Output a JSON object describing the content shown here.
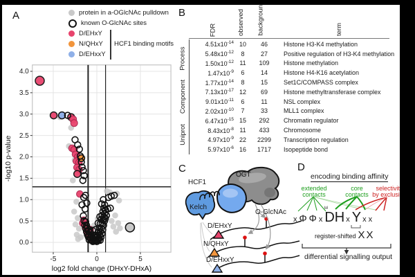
{
  "figure": {
    "panel_a": {
      "label": "A",
      "legend": [
        {
          "swatch": "grey-dot",
          "color_ref": "grey_dot",
          "label": "protein in a-OGlcNAc pulldown"
        },
        {
          "swatch": "open-circle",
          "color_ref": null,
          "label": "known O-GlcNAc sites"
        },
        {
          "swatch": "pink-dot",
          "color_ref": "pink",
          "label": "D/EHxY"
        },
        {
          "swatch": "orange-dot",
          "color_ref": "orange",
          "label": "N/QHxY"
        },
        {
          "swatch": "blue-dot",
          "color_ref": "blue",
          "label": "D/EHxxY"
        }
      ],
      "bracket_label": "HCF1 binding motifs"
    },
    "panel_b": {
      "label": "B",
      "col_headers": [
        "FDR",
        "observed",
        "background",
        "term"
      ],
      "groups": [
        {
          "name": "Process",
          "rows": [
            {
              "fdr_m": "4.51x10",
              "fdr_e": "-14",
              "obs": "10",
              "bg": "46",
              "term": "Histone H3-K4 methylation"
            },
            {
              "fdr_m": "5.48x10",
              "fdr_e": "-12",
              "obs": "8",
              "bg": "27",
              "term": "Positive regulation of H3-K4 methylation"
            },
            {
              "fdr_m": "1.50x10",
              "fdr_e": "-12",
              "obs": "11",
              "bg": "109",
              "term": "Histone methylation"
            },
            {
              "fdr_m": "1.47x10",
              "fdr_e": "-9",
              "obs": "6",
              "bg": "14",
              "term": "Histone H4-K16 acetylation"
            }
          ]
        },
        {
          "name": "Component",
          "rows": [
            {
              "fdr_m": "1.77x10",
              "fdr_e": "-14",
              "obs": "8",
              "bg": "15",
              "term": "Set1C/COMPASS complex"
            },
            {
              "fdr_m": "7.13x10",
              "fdr_e": "-17",
              "obs": "12",
              "bg": "69",
              "term": "Histone methyltransferase complex"
            },
            {
              "fdr_m": "9.01x10",
              "fdr_e": "-11",
              "obs": "6",
              "bg": "11",
              "term": "NSL complex"
            },
            {
              "fdr_m": "2.02x10",
              "fdr_e": "-10",
              "obs": "7",
              "bg": "33",
              "term": "MLL1 complex"
            }
          ]
        },
        {
          "name": "Uniprot",
          "rows": [
            {
              "fdr_m": "6.47x10",
              "fdr_e": "-15",
              "obs": "15",
              "bg": "292",
              "term": "Chromatin regulator"
            },
            {
              "fdr_m": "8.43x10",
              "fdr_e": "-8",
              "obs": "11",
              "bg": "433",
              "term": "Chromosome"
            },
            {
              "fdr_m": "4.97x10",
              "fdr_e": "-9",
              "obs": "22",
              "bg": "2299",
              "term": "Transcription regulation"
            },
            {
              "fdr_m": "5.97x10",
              "fdr_e": "-6",
              "obs": "16",
              "bg": "1717",
              "term": "Isopeptide bond"
            }
          ]
        }
      ]
    },
    "panel_c": {
      "label": "C",
      "hcf1_label": "HCF1",
      "ogt_label": "OGT",
      "kelch_label": "Kelch",
      "oglcnac_label": "O-GlcNAc",
      "motif_rows": [
        {
          "label": "D/EHxY",
          "color_ref": "pink"
        },
        {
          "label": "N/QHxY",
          "color_ref": "orange"
        },
        {
          "label": "D/EHxxY",
          "color_ref": "blue"
        }
      ]
    },
    "panel_d": {
      "label": "D",
      "title": "encoding binding affinity",
      "annotations": {
        "extended": {
          "lines": [
            "extended",
            "contacts"
          ],
          "color_ref": "green"
        },
        "core": {
          "lines": [
            "core",
            "contacts"
          ],
          "color_ref": "green"
        },
        "selectivity": {
          "lines": [
            "selectivity",
            "by exclusion"
          ],
          "color_ref": "red"
        }
      },
      "motif_chars": [
        {
          "t": "x",
          "s": "sm"
        },
        {
          "t": "Φ",
          "s": "md"
        },
        {
          "t": "Φ",
          "s": "md"
        },
        {
          "t": "x",
          "s": "sm"
        },
        {
          "t": "D",
          "s": "lg",
          "sup": "E"
        },
        {
          "t": "H",
          "s": "lg"
        },
        {
          "t": "x",
          "s": "sm"
        },
        {
          "t": "Y",
          "s": "lg"
        },
        {
          "t": "x",
          "s": "sm"
        },
        {
          "t": "x",
          "s": "sm"
        }
      ],
      "register_shifted_label": "register-shifted",
      "register_shifted_chars": "XX",
      "output_label": "differential signalling output"
    }
  },
  "chart_data": {
    "type": "scatter",
    "title": "",
    "xlabel": "log2 fold change (DHxY-DHxA)",
    "ylabel": "-log10 p-value",
    "xlim": [
      -7.4,
      8.5
    ],
    "ylim": [
      -0.23,
      4.15
    ],
    "xticks": [
      -5,
      0,
      5
    ],
    "yticks": [
      0,
      0.5,
      1,
      1.5,
      2,
      2.5,
      3,
      3.5,
      4
    ],
    "threshold_vlines": [
      -1,
      1
    ],
    "threshold_hline": 1.3,
    "grid": true,
    "legend_position": "top-left-outside",
    "series": [
      {
        "name": "protein in a-OGlcNAc pulldown",
        "style": "grey",
        "points": [
          [
            -4.25,
            2.93
          ],
          [
            -2.95,
            2.68
          ],
          [
            -3.2,
            2.25
          ],
          [
            -2.55,
            1.93
          ],
          [
            -2.75,
            1.45
          ],
          [
            -2.35,
            0.95
          ],
          [
            -2.6,
            0.72
          ],
          [
            -2.2,
            0.57
          ],
          [
            -2.45,
            0.42
          ],
          [
            -2.05,
            0.32
          ],
          [
            -2.3,
            0.18
          ],
          [
            -1.85,
            0.12
          ],
          [
            -2.15,
            0.08
          ],
          [
            1.5,
            1.17
          ],
          [
            2.3,
            1.14
          ],
          [
            2.55,
            0.98
          ],
          [
            2.1,
            0.63
          ],
          [
            2.45,
            0.45
          ],
          [
            1.9,
            0.37
          ],
          [
            2.65,
            0.33
          ],
          [
            1.7,
            0.5
          ],
          [
            2.2,
            0.25
          ],
          [
            0.4,
            0.52
          ],
          [
            0.2,
            0.35
          ],
          [
            1.15,
            1.2
          ],
          [
            0.1,
            0.55
          ],
          [
            -0.3,
            0.4
          ]
        ]
      },
      {
        "name": "D/EHxY",
        "style": "pink",
        "points": [
          [
            -6.55,
            3.78,
            6.5,
            1
          ],
          [
            -4.95,
            2.97,
            5,
            1
          ],
          [
            -2.95,
            2.93,
            5,
            1
          ],
          [
            -2.72,
            2.88,
            5
          ],
          [
            -2.6,
            2.79,
            5
          ],
          [
            -2.85,
            2.2
          ],
          [
            -2.6,
            2.17
          ],
          [
            -2.45,
            2.06
          ],
          [
            -2.2,
            2.0
          ],
          [
            -2.35,
            1.9
          ],
          [
            -2.05,
            1.87
          ],
          [
            -2.28,
            1.75
          ],
          [
            -2.02,
            1.7
          ],
          [
            -2.25,
            1.6,
            5,
            1
          ],
          [
            -1.95,
            1.13
          ],
          [
            -1.5,
            0.52
          ],
          [
            -1.3,
            0.35
          ],
          [
            -1.1,
            0.22
          ],
          [
            -0.9,
            0.13
          ],
          [
            -0.6,
            0.07
          ],
          [
            -1.62,
            0.45
          ],
          [
            -0.75,
            0.3
          ]
        ]
      },
      {
        "name": "N/QHxY",
        "style": "orange",
        "points": [
          [
            -1.78,
            1.97,
            4.8,
            1
          ]
        ]
      },
      {
        "name": "D/EHxxY",
        "style": "blue",
        "points": [
          [
            -4.0,
            2.97,
            5,
            1
          ]
        ]
      },
      {
        "name": "known O-GlcNAc sites",
        "style": "open",
        "points": [
          [
            -3.35,
            2.97
          ],
          [
            -2.5,
            2.4
          ],
          [
            -2.2,
            2.28
          ],
          [
            -2.0,
            2.18
          ],
          [
            -1.9,
            2.02
          ],
          [
            -1.78,
            1.88
          ],
          [
            -1.7,
            1.76
          ],
          [
            -1.55,
            1.68
          ],
          [
            -1.45,
            1.56
          ],
          [
            -1.6,
            1.45
          ],
          [
            -1.5,
            1.05
          ],
          [
            -1.3,
            1.1
          ],
          [
            -1.15,
            0.92
          ],
          [
            -1.7,
            0.88
          ],
          [
            -1.35,
            0.78
          ],
          [
            1.35,
            1.05
          ],
          [
            1.65,
            1.08
          ],
          [
            2.0,
            1.1
          ],
          [
            1.25,
            0.78
          ],
          [
            1.55,
            0.8
          ],
          [
            1.1,
            0.63
          ],
          [
            3.8,
            0.35,
            6.5,
            2
          ],
          [
            -1.55,
            0.62
          ],
          [
            -1.45,
            0.5
          ],
          [
            -1.38,
            0.4
          ],
          [
            -1.28,
            0.48
          ],
          [
            -1.28,
            0.32
          ],
          [
            -1.18,
            0.4
          ],
          [
            -1.18,
            0.25
          ],
          [
            -1.08,
            0.33
          ],
          [
            -1.08,
            0.18
          ],
          [
            -0.98,
            0.27
          ],
          [
            -0.98,
            0.13
          ],
          [
            -0.9,
            0.3
          ],
          [
            -0.88,
            0.18
          ],
          [
            -0.88,
            0.06
          ],
          [
            -0.78,
            0.24
          ],
          [
            -0.78,
            0.1
          ],
          [
            -0.68,
            0.18
          ],
          [
            -0.68,
            0.06
          ],
          [
            -0.58,
            0.14
          ],
          [
            -0.55,
            0.04
          ],
          [
            -0.48,
            0.1
          ],
          [
            -0.45,
            0.02
          ],
          [
            -0.38,
            0.08
          ],
          [
            -0.35,
            0.15
          ],
          [
            -0.28,
            0.05
          ],
          [
            -0.25,
            0.12
          ],
          [
            -0.18,
            0.03
          ],
          [
            -0.15,
            0.1
          ],
          [
            -0.08,
            0.05
          ],
          [
            0.0,
            0.02
          ],
          [
            0.0,
            0.12
          ],
          [
            0.08,
            0.07
          ],
          [
            0.12,
            0.16
          ],
          [
            0.18,
            0.05
          ],
          [
            0.22,
            0.25
          ],
          [
            0.25,
            0.1
          ],
          [
            0.3,
            0.33
          ],
          [
            0.32,
            0.16
          ],
          [
            0.38,
            0.05
          ],
          [
            0.4,
            0.44
          ],
          [
            0.42,
            0.25
          ],
          [
            0.48,
            0.12
          ],
          [
            0.5,
            0.54
          ],
          [
            0.52,
            0.33
          ],
          [
            0.58,
            0.2
          ],
          [
            0.6,
            0.63
          ],
          [
            0.62,
            0.44
          ],
          [
            0.68,
            0.3
          ],
          [
            0.7,
            0.72
          ],
          [
            0.72,
            0.52
          ],
          [
            0.78,
            0.4
          ],
          [
            0.8,
            0.8
          ],
          [
            0.82,
            0.6
          ],
          [
            0.88,
            0.5
          ],
          [
            0.9,
            0.88
          ],
          [
            0.92,
            0.68
          ],
          [
            0.98,
            0.56
          ],
          [
            1.0,
            0.76
          ],
          [
            0.35,
            0.6
          ],
          [
            0.15,
            0.45
          ],
          [
            -0.15,
            0.3
          ],
          [
            -0.5,
            0.28
          ],
          [
            0.55,
            0.9
          ],
          [
            0.75,
            1.0
          ]
        ]
      }
    ]
  },
  "colors": {
    "grey_dot": "#c9c9c9",
    "pink": "#e8446d",
    "pink_edge": "#a8234c",
    "orange": "#f2953c",
    "blue": "#8fb0e8",
    "open_stroke": "#111111",
    "threshold_line": "#222222",
    "grid_line": "#e4e4e4",
    "box_line": "#c4c4c4",
    "kelch_blue": "#5f9be0",
    "hcf1_blue": "#74a9ee",
    "hcf1_blue_light": "#aac8f4",
    "ogt_grey": "#8d8d8d",
    "ogt_grey_light": "#b8b8b8",
    "glcnac_red": "#dd1111",
    "arrow_grey": "#999999",
    "green": "#1e9e1e",
    "green_light": "#a8d8a0",
    "red": "#cc2020",
    "red_light": "#e8a0a0"
  }
}
